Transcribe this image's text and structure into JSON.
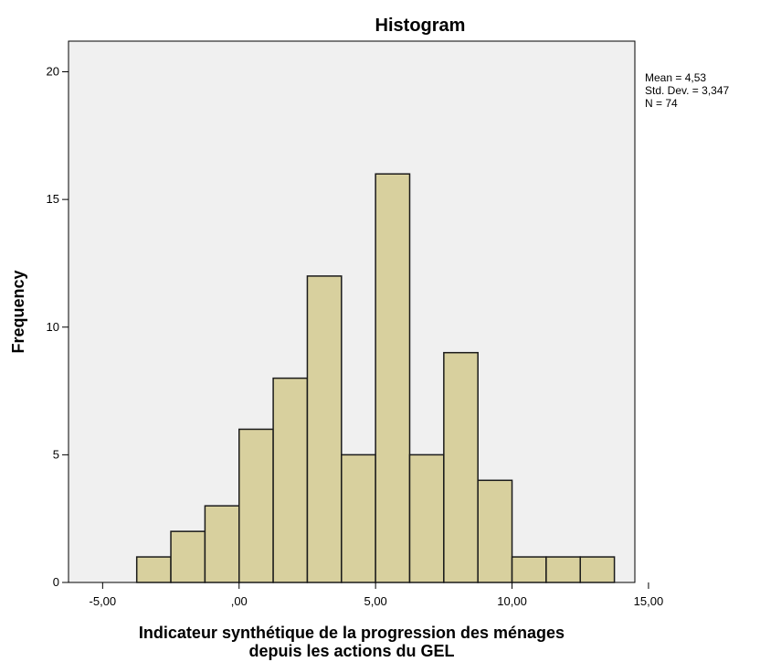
{
  "chart_data": {
    "type": "bar",
    "title": "Histogram",
    "xlabel_lines": [
      "Indicateur synthétique de la progression des ménages",
      "depuis les actions du GEL"
    ],
    "ylabel": "Frequency",
    "xlim": [
      -6.25,
      14.5
    ],
    "ylim": [
      0,
      21.2
    ],
    "x_ticks": [
      {
        "value": -5,
        "label": "-5,00"
      },
      {
        "value": 0,
        "label": ",00"
      },
      {
        "value": 5,
        "label": "5,00"
      },
      {
        "value": 10,
        "label": "10,00"
      },
      {
        "value": 15,
        "label": "15,00"
      }
    ],
    "y_ticks": [
      {
        "value": 0,
        "label": "0"
      },
      {
        "value": 5,
        "label": "5"
      },
      {
        "value": 10,
        "label": "10"
      },
      {
        "value": 15,
        "label": "15"
      },
      {
        "value": 20,
        "label": "20"
      }
    ],
    "bins": [
      {
        "start": -3.75,
        "end": -2.5,
        "count": 1
      },
      {
        "start": -2.5,
        "end": -1.25,
        "count": 2
      },
      {
        "start": -1.25,
        "end": 0,
        "count": 3
      },
      {
        "start": 0,
        "end": 1.25,
        "count": 6
      },
      {
        "start": 1.25,
        "end": 2.5,
        "count": 8
      },
      {
        "start": 2.5,
        "end": 3.75,
        "count": 12
      },
      {
        "start": 3.75,
        "end": 5,
        "count": 5
      },
      {
        "start": 5,
        "end": 6.25,
        "count": 16
      },
      {
        "start": 6.25,
        "end": 7.5,
        "count": 5
      },
      {
        "start": 7.5,
        "end": 8.75,
        "count": 9
      },
      {
        "start": 8.75,
        "end": 10,
        "count": 4
      },
      {
        "start": 10,
        "end": 11.25,
        "count": 1
      },
      {
        "start": 11.25,
        "end": 12.5,
        "count": 1
      },
      {
        "start": 12.5,
        "end": 13.75,
        "count": 1
      }
    ],
    "stats": [
      "Mean = 4,53",
      "Std. Dev. = 3,347",
      "N = 74"
    ],
    "grid": false,
    "colors": {
      "bar_fill": "#d8d09e",
      "bar_stroke": "#1a1a1a",
      "plot_background": "#f0f0f0",
      "page_background": "#ffffff"
    }
  }
}
